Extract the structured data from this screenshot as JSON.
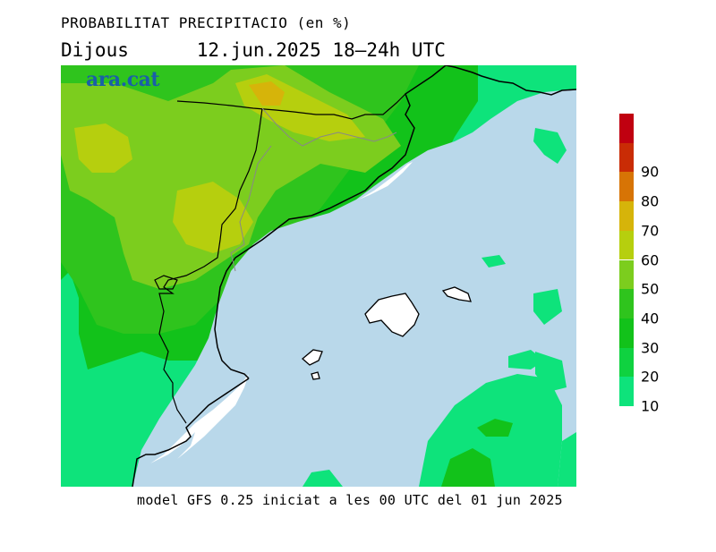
{
  "title": "PROBABILITAT PRECIPITACIO (en %)",
  "day": "Dijous",
  "period": "12.jun.2025 18–24h UTC",
  "brand": "ara.cat",
  "footer": "model GFS 0.25 iniciat a les 00 UTC del 01 jun 2025",
  "legend": {
    "thresholds": [
      "10",
      "20",
      "30",
      "40",
      "50",
      "60",
      "70",
      "80",
      "90"
    ],
    "colors": [
      "#0ee37b",
      "#0fd240",
      "#12c21a",
      "#2fc41d",
      "#7ccd1e",
      "#b6cf0e",
      "#d6b40a",
      "#d77405",
      "#c92c05",
      "#c00010"
    ]
  },
  "colors": {
    "sea": "#b9d8ea",
    "land_low": "#0ee37b",
    "coast": "#000000",
    "border": "#888888"
  }
}
